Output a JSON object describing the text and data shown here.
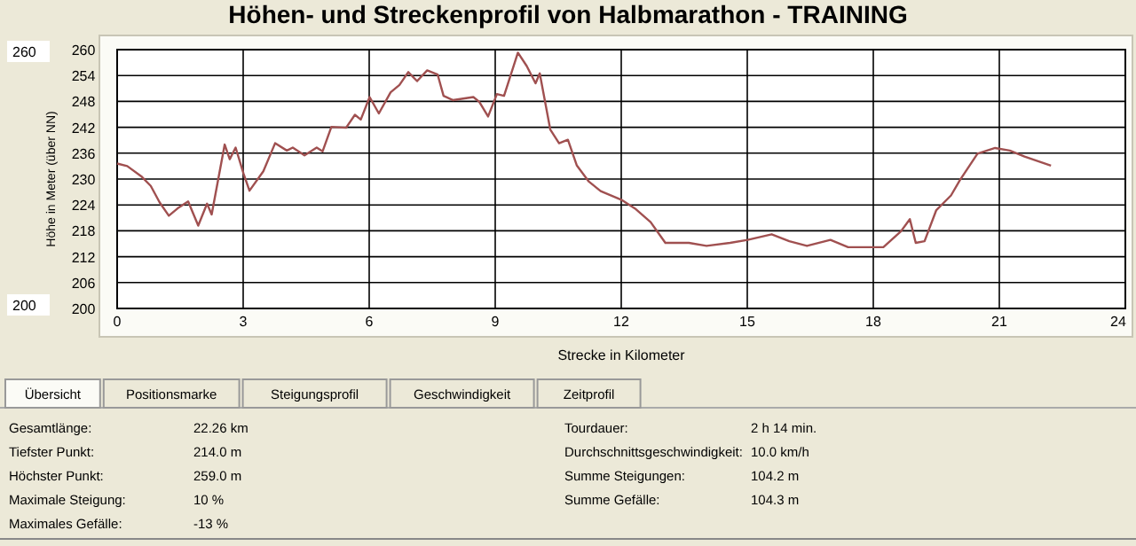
{
  "chart_data": {
    "type": "line",
    "title": "Höhen- und Streckenprofil von Halbmarathon - TRAINING",
    "xlabel": "Strecke in Kilometer",
    "ylabel": "Höhe in Meter (über NN)",
    "xlim": [
      0,
      24
    ],
    "xticks": [
      0,
      3,
      6,
      9,
      12,
      15,
      18,
      21,
      24
    ],
    "ylim": [
      200,
      260
    ],
    "yticks": [
      200,
      206,
      212,
      218,
      224,
      230,
      236,
      242,
      248,
      254,
      260
    ],
    "grid": true,
    "marker": "none",
    "line_style": "solid",
    "series": [
      {
        "color": "#a05050",
        "x": [
          0,
          0.24,
          0.59,
          0.8,
          1.01,
          1.23,
          1.44,
          1.69,
          1.93,
          2.14,
          2.25,
          2.56,
          2.68,
          2.82,
          3.01,
          3.15,
          3.48,
          3.76,
          4.04,
          4.18,
          4.46,
          4.75,
          4.89,
          5.1,
          5.45,
          5.66,
          5.8,
          6.01,
          6.23,
          6.51,
          6.72,
          6.93,
          7.14,
          7.38,
          7.63,
          7.77,
          7.99,
          8.48,
          8.62,
          8.83,
          9.04,
          9.21,
          9.54,
          9.75,
          9.96,
          10.06,
          10.31,
          10.52,
          10.73,
          10.94,
          11.23,
          11.51,
          12,
          12.35,
          12.7,
          13.05,
          13.61,
          14.03,
          14.59,
          15.01,
          15.58,
          16,
          16.42,
          16.98,
          17.4,
          17.96,
          18.24,
          18.66,
          18.87,
          19.01,
          19.22,
          19.5,
          19.85,
          20.06,
          20.48,
          20.9,
          21.25,
          21.6,
          22.23
        ],
        "values": [
          233.6,
          233,
          230.5,
          228.4,
          224.6,
          221.5,
          223.2,
          224.8,
          219.2,
          224.3,
          221.8,
          238,
          234.6,
          237.3,
          231.2,
          227.3,
          231.8,
          238.3,
          236.6,
          237.3,
          235.5,
          237.3,
          236.4,
          242.1,
          241.9,
          244.9,
          243.8,
          249,
          245.2,
          250.1,
          251.8,
          254.8,
          252.7,
          255.2,
          254.2,
          249.3,
          248.3,
          249,
          247.9,
          244.5,
          249.7,
          249.3,
          259.3,
          256.2,
          252.2,
          254.5,
          241.5,
          238.3,
          239.1,
          233.2,
          229.4,
          227.2,
          225.2,
          223,
          220,
          215.2,
          215.2,
          214.5,
          215.2,
          215.9,
          217.2,
          215.6,
          214.5,
          215.9,
          214.2,
          214.2,
          214.2,
          217.9,
          220.7,
          215.2,
          215.6,
          222.8,
          226.2,
          229.7,
          235.9,
          237.2,
          236.6,
          235.2,
          233.1
        ]
      }
    ],
    "annotations": [
      "260",
      "200",
      "Übersicht",
      "Positionsmarke",
      "Steigungsprofil",
      "Geschwindigkeit",
      "Zeitprofil",
      "Gesamtlänge:",
      "22.26 km",
      "Tiefster Punkt:",
      "214.0 m",
      "Höchster Punkt:",
      "259.0 m",
      "Maximale Steigung:",
      "10 %",
      "Maximales Gefälle:",
      "-13 %",
      "Tourdauer:",
      "2 h 14 min.",
      "Durchschnittsgeschwindigkeit:",
      "10.0 km/h",
      "Summe Steigungen:",
      "104.2 m",
      "Summe Gefälle:",
      "104.3 m"
    ]
  }
}
